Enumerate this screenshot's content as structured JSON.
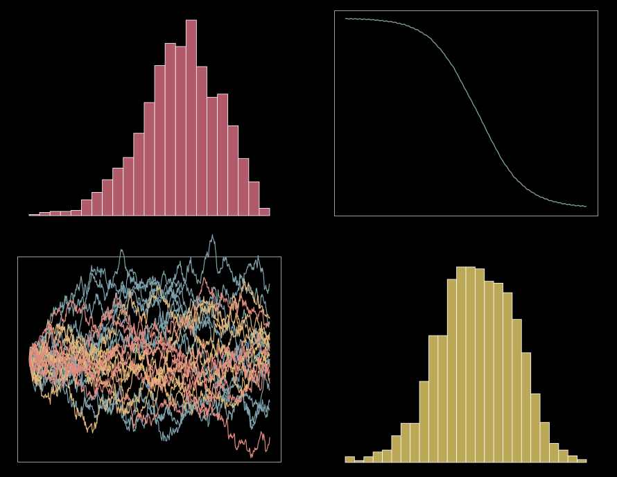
{
  "colors": {
    "background": "#000000",
    "hist_red": "#b05a6a",
    "cdf_line": "#7fa3a8",
    "walk_blue": "#7fa3ad",
    "walk_orange": "#e3b77a",
    "walk_red": "#e08a80",
    "hist_yellow": "#bca957",
    "frame": "#9a9a9a",
    "bar_edge": "#ffffff"
  },
  "chart_data": [
    {
      "type": "bar",
      "panel": "top-left",
      "title": "",
      "xlabel": "",
      "ylabel": "",
      "frame": false,
      "grid": false,
      "values": [
        1,
        3,
        4,
        4,
        5,
        15,
        22,
        34,
        45,
        55,
        78,
        107,
        142,
        163,
        160,
        185,
        141,
        112,
        115,
        85,
        54,
        32,
        7
      ],
      "ylim": [
        0,
        185
      ]
    },
    {
      "type": "line",
      "panel": "top-right",
      "title": "",
      "xlabel": "",
      "ylabel": "",
      "frame": true,
      "grid": false,
      "x": [
        0,
        0.05,
        0.1,
        0.15,
        0.2,
        0.25,
        0.3,
        0.35,
        0.4,
        0.45,
        0.5,
        0.55,
        0.6,
        0.65,
        0.7,
        0.75,
        0.8,
        0.85,
        0.9,
        0.95,
        1
      ],
      "y": [
        1.0,
        0.999,
        0.996,
        0.99,
        0.982,
        0.967,
        0.94,
        0.9,
        0.83,
        0.74,
        0.62,
        0.5,
        0.37,
        0.25,
        0.16,
        0.1,
        0.06,
        0.035,
        0.02,
        0.01,
        0.005
      ],
      "ylim": [
        0,
        1
      ],
      "xlim": [
        0,
        1
      ]
    },
    {
      "type": "line",
      "panel": "bottom-left",
      "subtype": "random-walks",
      "title": "",
      "xlabel": "",
      "ylabel": "",
      "frame": true,
      "grid": false,
      "n_steps": 500,
      "endpoints": [
        {
          "color": "walk_blue",
          "end": 2.8
        },
        {
          "color": "walk_blue",
          "end": 1.4
        },
        {
          "color": "walk_blue",
          "end": 0.6
        },
        {
          "color": "walk_blue",
          "end": 0.2
        },
        {
          "color": "walk_blue",
          "end": -0.3
        },
        {
          "color": "walk_blue",
          "end": -0.7
        },
        {
          "color": "walk_blue",
          "end": -1.1
        },
        {
          "color": "walk_blue",
          "end": -1.6
        },
        {
          "color": "walk_blue",
          "end": -1.9
        },
        {
          "color": "walk_blue",
          "end": -0.1
        },
        {
          "color": "walk_blue",
          "end": 0.9
        },
        {
          "color": "walk_orange",
          "end": 1.5
        },
        {
          "color": "walk_orange",
          "end": 1.0
        },
        {
          "color": "walk_orange",
          "end": 0.7
        },
        {
          "color": "walk_orange",
          "end": 0.4
        },
        {
          "color": "walk_orange",
          "end": 0.1
        },
        {
          "color": "walk_orange",
          "end": -0.2
        },
        {
          "color": "walk_orange",
          "end": -0.5
        },
        {
          "color": "walk_orange",
          "end": 0.3
        },
        {
          "color": "walk_red",
          "end": 1.3
        },
        {
          "color": "walk_red",
          "end": 0.5
        },
        {
          "color": "walk_red",
          "end": -0.4
        },
        {
          "color": "walk_red",
          "end": -0.9
        },
        {
          "color": "walk_red",
          "end": -2.9
        },
        {
          "color": "walk_red",
          "end": 0.0
        }
      ],
      "ylim": [
        -3.5,
        3.5
      ]
    },
    {
      "type": "bar",
      "panel": "bottom-right",
      "title": "",
      "xlabel": "",
      "ylabel": "",
      "frame": false,
      "grid": false,
      "values": [
        6,
        2,
        6,
        11,
        13,
        28,
        41,
        41,
        85,
        133,
        133,
        192,
        205,
        205,
        203,
        190,
        188,
        178,
        150,
        115,
        72,
        42,
        20,
        13,
        7,
        3
      ],
      "ylim": [
        0,
        205
      ]
    }
  ]
}
